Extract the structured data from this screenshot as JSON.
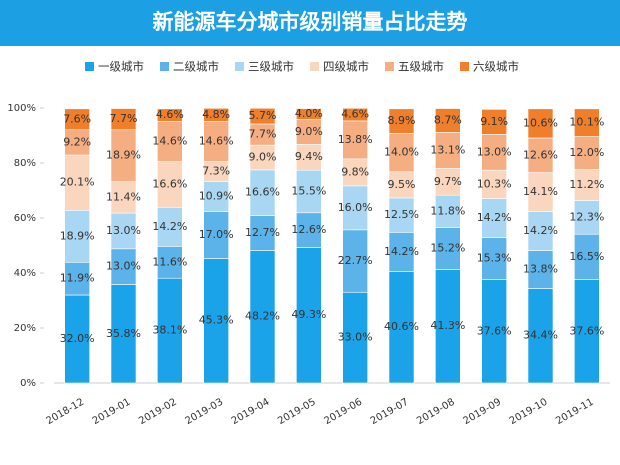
{
  "chart_data": {
    "type": "stacked_bar",
    "title": "新能源车分城市级别销量占比走势",
    "categories": [
      "2018-12",
      "2019-01",
      "2019-02",
      "2019-03",
      "2019-04",
      "2019-05",
      "2019-06",
      "2019-07",
      "2019-08",
      "2019-09",
      "2019-10",
      "2019-11"
    ],
    "series": [
      {
        "name": "一级城市",
        "color": "#1ba3e9",
        "values": [
          32.0,
          35.8,
          38.1,
          45.3,
          48.2,
          49.3,
          33.0,
          40.6,
          41.3,
          37.6,
          34.4,
          37.6
        ],
        "value_labels": [
          "32.0%",
          "35.8%",
          "38.1%",
          "45.3%",
          "48.2%",
          "49.3%",
          "33.0%",
          "40.6%",
          "41.3%",
          "37.6%",
          "34.4%",
          "37.6%"
        ]
      },
      {
        "name": "二级城市",
        "color": "#5bb3ea",
        "values": [
          11.9,
          13.0,
          11.6,
          17.0,
          12.7,
          12.6,
          22.7,
          14.2,
          15.2,
          15.3,
          13.8,
          16.5
        ],
        "value_labels": [
          "11.9%",
          "13.0%",
          "11.6%",
          "17.0%",
          "12.7%",
          "12.6%",
          "22.7%",
          "14.2%",
          "15.2%",
          "15.3%",
          "13.8%",
          "16.5%"
        ]
      },
      {
        "name": "三级城市",
        "color": "#a9d6f3",
        "values": [
          18.9,
          13.0,
          14.2,
          10.9,
          16.6,
          15.5,
          16.0,
          12.5,
          11.8,
          14.2,
          14.2,
          12.3
        ],
        "value_labels": [
          "18.9%",
          "13.0%",
          "14.2%",
          "10.9%",
          "16.6%",
          "15.5%",
          "16.0%",
          "12.5%",
          "11.8%",
          "14.2%",
          "14.2%",
          "12.3%"
        ]
      },
      {
        "name": "四级城市",
        "color": "#f9d6bd",
        "values": [
          20.1,
          11.4,
          16.6,
          7.3,
          9.0,
          9.4,
          9.8,
          9.5,
          9.7,
          10.3,
          14.1,
          11.2
        ],
        "value_labels": [
          "20.1%",
          "11.4%",
          "16.6%",
          "7.3%",
          "9.0%",
          "9.4%",
          "9.8%",
          "9.5%",
          "9.7%",
          "10.3%",
          "14.1%",
          "11.2%"
        ]
      },
      {
        "name": "五级城市",
        "color": "#f5ad82",
        "values": [
          9.2,
          18.9,
          14.6,
          14.6,
          7.7,
          9.0,
          13.8,
          14.0,
          13.1,
          13.0,
          12.6,
          12.0
        ],
        "value_labels": [
          "9.2%",
          "18.9%",
          "14.6%",
          "14.6%",
          "7.7%",
          "9.0%",
          "13.8%",
          "14.0%",
          "13.1%",
          "13.0%",
          "12.6%",
          "12.0%"
        ]
      },
      {
        "name": "六级城市",
        "color": "#f07f2c",
        "values": [
          7.6,
          7.7,
          4.6,
          4.8,
          5.7,
          4.0,
          4.6,
          8.9,
          8.7,
          9.1,
          10.6,
          10.1
        ],
        "value_labels": [
          "7.6%",
          "7.7%",
          "4.6%",
          "4.8%",
          "5.7%",
          "4.0%",
          "4.6%",
          "8.9%",
          "8.7%",
          "9.1%",
          "10.6%",
          "10.1%"
        ]
      }
    ],
    "ylim": [
      0,
      100
    ],
    "yticks": [
      {
        "value": 0,
        "label": "0%"
      },
      {
        "value": 20,
        "label": "20%"
      },
      {
        "value": 40,
        "label": "40%"
      },
      {
        "value": 60,
        "label": "60%"
      },
      {
        "value": 80,
        "label": "80%"
      },
      {
        "value": 100,
        "label": "100%"
      }
    ],
    "legend": "top"
  }
}
